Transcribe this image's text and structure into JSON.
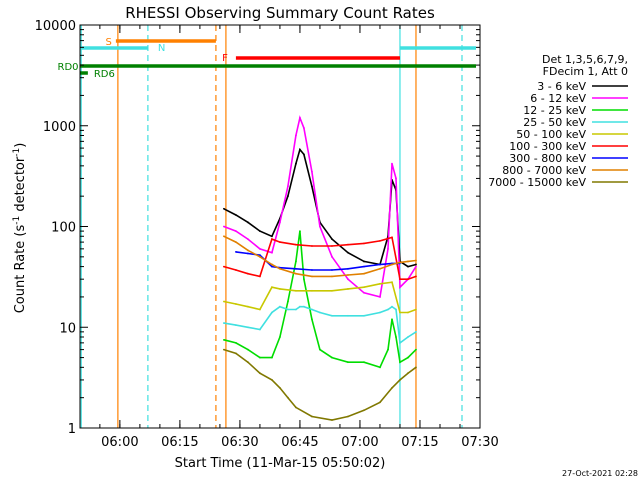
{
  "chart_data": {
    "type": "line",
    "title": "RHESSI Observing Summary Count Rates",
    "xlabel": "Start Time (11-Mar-15 05:50:02)",
    "ylabel": "Count Rate (s^-1 detector^-1)",
    "ylabel_parts": {
      "pre": "Count Rate (s",
      "sup": "-1",
      "mid": " detector",
      "sup2": "-1",
      "post": ")"
    },
    "y_scale": "log",
    "ylim": [
      1,
      10000
    ],
    "y_ticks": [
      1,
      10,
      100,
      1000,
      10000
    ],
    "y_tick_labels": [
      "1",
      "10",
      "100",
      "1000",
      "10000"
    ],
    "x_ticks": [
      "06:00",
      "06:15",
      "06:30",
      "06:45",
      "07:00",
      "07:15",
      "07:30"
    ],
    "xlim": [
      "05:50:02",
      "07:30:00"
    ],
    "legend_header": [
      "Det 1,3,5,6,7,9,",
      "FDecim 1, Att 0"
    ],
    "legend_placement": "right",
    "timestamp": "27-Oct-2021 02:28",
    "flags": [
      {
        "label": "S",
        "color": "#ff8000",
        "start": "05:59",
        "end": "06:24",
        "level": "high"
      },
      {
        "label": "N",
        "color": "#40e0e0",
        "start": "05:50",
        "end": "06:07",
        "level": "mid"
      },
      {
        "label": "N",
        "color": "#40e0e0",
        "start": "07:10",
        "end": "07:29",
        "level": "mid"
      },
      {
        "label": "F",
        "color": "#ff0000",
        "start": "06:29",
        "end": "07:10",
        "level": "low"
      },
      {
        "label": "RD0",
        "color": "#008000",
        "start": "05:50",
        "end": "07:29",
        "level": "rd0"
      },
      {
        "label": "RD6",
        "color": "#008000",
        "start": "05:50",
        "end": "05:52",
        "level": "rd6"
      }
    ],
    "vertical_lines": [
      {
        "time": "05:50:20",
        "color": "#40e0e0",
        "style": "solid"
      },
      {
        "time": "05:59:30",
        "color": "#ff8000",
        "style": "solid"
      },
      {
        "time": "06:07:00",
        "color": "#40e0e0",
        "style": "dashed"
      },
      {
        "time": "06:24:00",
        "color": "#ff8000",
        "style": "dashed"
      },
      {
        "time": "06:26:30",
        "color": "#ff8000",
        "style": "solid"
      },
      {
        "time": "07:10:00",
        "color": "#40e0e0",
        "style": "solid"
      },
      {
        "time": "07:14:00",
        "color": "#ff8000",
        "style": "solid"
      },
      {
        "time": "07:25:30",
        "color": "#40e0e0",
        "style": "dashed"
      }
    ],
    "series": [
      {
        "name": "3 - 6 keV",
        "color": "#000000",
        "x": [
          "06:26",
          "06:29",
          "06:32",
          "06:35",
          "06:38",
          "06:40",
          "06:42",
          "06:44",
          "06:45",
          "06:46",
          "06:48",
          "06:50",
          "06:53",
          "06:57",
          "07:01",
          "07:05",
          "07:07",
          "07:08",
          "07:09",
          "07:10",
          "07:12",
          "07:14"
        ],
        "y": [
          150,
          130,
          110,
          90,
          80,
          120,
          200,
          420,
          580,
          520,
          250,
          110,
          75,
          55,
          45,
          42,
          80,
          290,
          230,
          45,
          40,
          42
        ]
      },
      {
        "name": "6 - 12 keV",
        "color": "#ff00ff",
        "x": [
          "06:26",
          "06:29",
          "06:32",
          "06:35",
          "06:38",
          "06:40",
          "06:42",
          "06:44",
          "06:45",
          "06:46",
          "06:48",
          "06:50",
          "06:53",
          "06:57",
          "07:01",
          "07:05",
          "07:07",
          "07:08",
          "07:09",
          "07:10",
          "07:12",
          "07:14"
        ],
        "y": [
          100,
          90,
          75,
          60,
          55,
          110,
          250,
          800,
          1200,
          950,
          350,
          100,
          50,
          30,
          22,
          20,
          60,
          420,
          300,
          25,
          30,
          40
        ]
      },
      {
        "name": "12 - 25 keV",
        "color": "#00dd00",
        "x": [
          "06:26",
          "06:29",
          "06:32",
          "06:35",
          "06:38",
          "06:40",
          "06:42",
          "06:44",
          "06:45",
          "06:46",
          "06:48",
          "06:50",
          "06:53",
          "06:57",
          "07:01",
          "07:05",
          "07:07",
          "07:08",
          "07:09",
          "07:10",
          "07:12",
          "07:14"
        ],
        "y": [
          7.5,
          7,
          6,
          5,
          5,
          8,
          18,
          45,
          90,
          30,
          12,
          6,
          5,
          4.5,
          4.5,
          4,
          6,
          12,
          8,
          4.5,
          5,
          6
        ]
      },
      {
        "name": "25 - 50 keV",
        "color": "#40e0e0",
        "x": [
          "06:26",
          "06:29",
          "06:32",
          "06:35",
          "06:38",
          "06:40",
          "06:42",
          "06:44",
          "06:45",
          "06:46",
          "06:48",
          "06:50",
          "06:53",
          "06:57",
          "07:01",
          "07:05",
          "07:07",
          "07:08",
          "07:09",
          "07:10",
          "07:12",
          "07:14"
        ],
        "y": [
          11,
          10.5,
          10,
          9.5,
          14,
          16,
          15,
          15,
          16,
          16,
          15,
          14,
          13,
          13,
          13,
          14,
          15,
          16,
          15,
          7,
          8,
          9
        ]
      },
      {
        "name": "50 - 100 keV",
        "color": "#c8c800",
        "x": [
          "06:26",
          "06:29",
          "06:32",
          "06:35",
          "06:38",
          "06:40",
          "06:44",
          "06:48",
          "06:53",
          "06:57",
          "07:01",
          "07:05",
          "07:08",
          "07:10",
          "07:12",
          "07:14"
        ],
        "y": [
          18,
          17,
          16,
          15,
          25,
          24,
          23,
          23,
          23,
          24,
          25,
          27,
          28,
          14,
          14,
          15
        ]
      },
      {
        "name": "100 - 300 keV",
        "color": "#ff0000",
        "x": [
          "06:26",
          "06:29",
          "06:32",
          "06:35",
          "06:38",
          "06:40",
          "06:44",
          "06:48",
          "06:53",
          "06:57",
          "07:01",
          "07:05",
          "07:08",
          "07:10",
          "07:12",
          "07:14"
        ],
        "y": [
          40,
          37,
          34,
          32,
          75,
          70,
          66,
          64,
          64,
          66,
          68,
          72,
          78,
          30,
          30,
          32
        ]
      },
      {
        "name": "300 - 800 keV",
        "color": "#0000ff",
        "x": [
          "06:29",
          "06:32",
          "06:35",
          "06:38",
          "06:40",
          "06:44",
          "06:48",
          "06:53",
          "06:57",
          "07:01",
          "07:05",
          "07:08",
          "07:10"
        ],
        "y": [
          56,
          54,
          52,
          40,
          39,
          38,
          37,
          37,
          38,
          40,
          42,
          43,
          43
        ]
      },
      {
        "name": "800 - 7000 keV",
        "color": "#e08000",
        "x": [
          "06:26",
          "06:29",
          "06:32",
          "06:35",
          "06:38",
          "06:40",
          "06:44",
          "06:48",
          "06:53",
          "06:57",
          "07:01",
          "07:05",
          "07:08",
          "07:10",
          "07:12",
          "07:14"
        ],
        "y": [
          80,
          70,
          58,
          50,
          42,
          38,
          34,
          32,
          32,
          33,
          34,
          38,
          42,
          44,
          45,
          46
        ]
      },
      {
        "name": "7000 - 15000 keV",
        "color": "#807800",
        "x": [
          "06:26",
          "06:29",
          "06:32",
          "06:35",
          "06:38",
          "06:40",
          "06:42",
          "06:44",
          "06:48",
          "06:53",
          "06:57",
          "07:01",
          "07:05",
          "07:08",
          "07:10",
          "07:12",
          "07:14"
        ],
        "y": [
          6,
          5.5,
          4.5,
          3.5,
          3,
          2.5,
          2,
          1.6,
          1.3,
          1.2,
          1.3,
          1.5,
          1.8,
          2.5,
          3,
          3.5,
          4
        ]
      }
    ]
  }
}
